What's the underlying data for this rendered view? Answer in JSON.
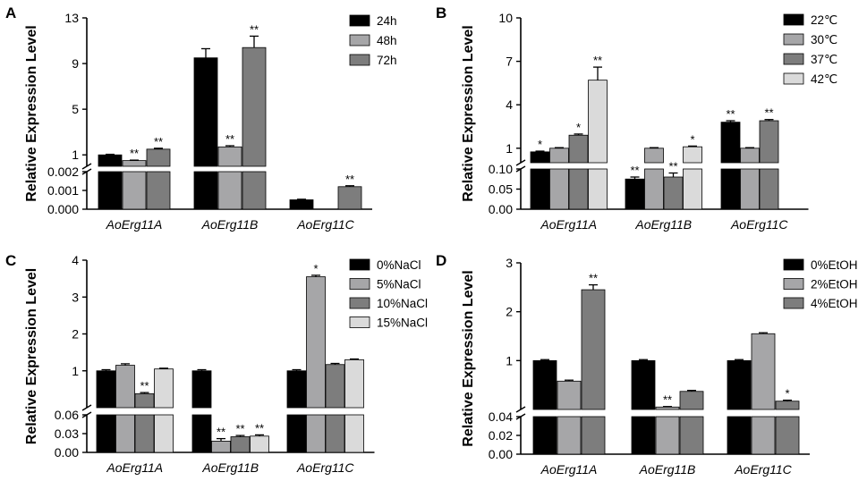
{
  "chart_data": [
    {
      "panel": "A",
      "type": "bar",
      "ylabel": "Relative Expression Level",
      "categories": [
        "AoErg11A",
        "AoErg11B",
        "AoErg11C"
      ],
      "upper": {
        "ylim": [
          0,
          13
        ],
        "ticks": [
          "1",
          "5",
          "9",
          "13"
        ]
      },
      "lower": {
        "ylim": [
          0,
          0.002
        ],
        "ticks": [
          "0.000",
          "0.001",
          "0.002"
        ]
      },
      "series": [
        {
          "name": "24h",
          "color": "#000000",
          "values": [
            1.0,
            9.5,
            0.0005
          ],
          "errors": [
            0.05,
            0.8,
            3e-05
          ],
          "sig": [
            "",
            "",
            ""
          ]
        },
        {
          "name": "48h",
          "color": "#a6a6a8",
          "values": [
            0.5,
            1.7,
            null
          ],
          "errors": [
            0.04,
            0.1,
            0
          ],
          "sig": [
            "**",
            "**",
            ""
          ]
        },
        {
          "name": "72h",
          "color": "#7d7d7d",
          "values": [
            1.5,
            10.4,
            0.0012
          ],
          "errors": [
            0.08,
            1.0,
            5e-05
          ],
          "sig": [
            "**",
            "**",
            "**"
          ]
        }
      ]
    },
    {
      "panel": "B",
      "type": "bar",
      "ylabel": "Relative Expression Level",
      "categories": [
        "AoErg11A",
        "AoErg11B",
        "AoErg11C"
      ],
      "upper": {
        "ylim": [
          0,
          10
        ],
        "ticks": [
          "1",
          "4",
          "7",
          "10"
        ]
      },
      "lower": {
        "ylim": [
          0,
          0.1
        ],
        "ticks": [
          "0.00",
          "0.05",
          "0.10"
        ]
      },
      "series": [
        {
          "name": "22℃",
          "color": "#000000",
          "values": [
            0.75,
            0.075,
            2.8
          ],
          "errors": [
            0.05,
            0.005,
            0.1
          ],
          "sig": [
            "*",
            "**",
            "**"
          ]
        },
        {
          "name": "30℃",
          "color": "#a6a6a8",
          "values": [
            1.0,
            1.0,
            1.0
          ],
          "errors": [
            0.04,
            0.04,
            0.04
          ],
          "sig": [
            "",
            "",
            ""
          ]
        },
        {
          "name": "37℃",
          "color": "#7d7d7d",
          "values": [
            1.9,
            0.08,
            2.9
          ],
          "errors": [
            0.08,
            0.01,
            0.08
          ],
          "sig": [
            "*",
            "**",
            "**"
          ]
        },
        {
          "name": "42℃",
          "color": "#dadada",
          "values": [
            5.7,
            1.1,
            null
          ],
          "errors": [
            0.9,
            0.05,
            0
          ],
          "sig": [
            "**",
            "*",
            ""
          ]
        }
      ]
    },
    {
      "panel": "C",
      "type": "bar",
      "ylabel": "Relative Expression Level",
      "categories": [
        "AoErg11A",
        "AoErg11B",
        "AoErg11C"
      ],
      "upper": {
        "ylim": [
          0,
          4
        ],
        "ticks": [
          "1",
          "2",
          "3",
          "4"
        ]
      },
      "lower": {
        "ylim": [
          0,
          0.06
        ],
        "ticks": [
          "0.00",
          "0.03",
          "0.06"
        ]
      },
      "series": [
        {
          "name": "0%NaCl",
          "color": "#000000",
          "values": [
            1.0,
            1.0,
            1.0
          ],
          "errors": [
            0.03,
            0.03,
            0.03
          ],
          "sig": [
            "",
            "",
            ""
          ]
        },
        {
          "name": "5%NaCl",
          "color": "#a6a6a8",
          "values": [
            1.15,
            0.018,
            3.55
          ],
          "errors": [
            0.04,
            0.004,
            0.04
          ],
          "sig": [
            "",
            "**",
            "*"
          ]
        },
        {
          "name": "10%NaCl",
          "color": "#7d7d7d",
          "values": [
            0.38,
            0.025,
            1.17
          ],
          "errors": [
            0.03,
            0.002,
            0.03
          ],
          "sig": [
            "**",
            "**",
            ""
          ]
        },
        {
          "name": "15%NaCl",
          "color": "#dadada",
          "values": [
            1.05,
            0.026,
            1.3
          ],
          "errors": [
            0.02,
            0.002,
            0.02
          ],
          "sig": [
            "",
            "**",
            ""
          ]
        }
      ]
    },
    {
      "panel": "D",
      "type": "bar",
      "ylabel": "Relative Expression Level",
      "categories": [
        "AoErg11A",
        "AoErg11B",
        "AoErg11C"
      ],
      "upper": {
        "ylim": [
          0,
          3
        ],
        "ticks": [
          "1",
          "2",
          "3"
        ]
      },
      "lower": {
        "ylim": [
          0,
          0.04
        ],
        "ticks": [
          "0.00",
          "0.02",
          "0.04"
        ]
      },
      "series": [
        {
          "name": "0%EtOH",
          "color": "#000000",
          "values": [
            1.0,
            1.0,
            1.0
          ],
          "errors": [
            0.02,
            0.02,
            0.02
          ],
          "sig": [
            "",
            "",
            ""
          ]
        },
        {
          "name": "2%EtOH",
          "color": "#a6a6a8",
          "values": [
            0.58,
            0.05,
            1.55
          ],
          "errors": [
            0.02,
            0.01,
            0.02
          ],
          "sig": [
            "",
            "**",
            ""
          ]
        },
        {
          "name": "4%EtOH",
          "color": "#7d7d7d",
          "values": [
            2.45,
            0.37,
            0.17
          ],
          "errors": [
            0.1,
            0.02,
            0.02
          ],
          "sig": [
            "**",
            "",
            "*"
          ]
        }
      ]
    }
  ]
}
